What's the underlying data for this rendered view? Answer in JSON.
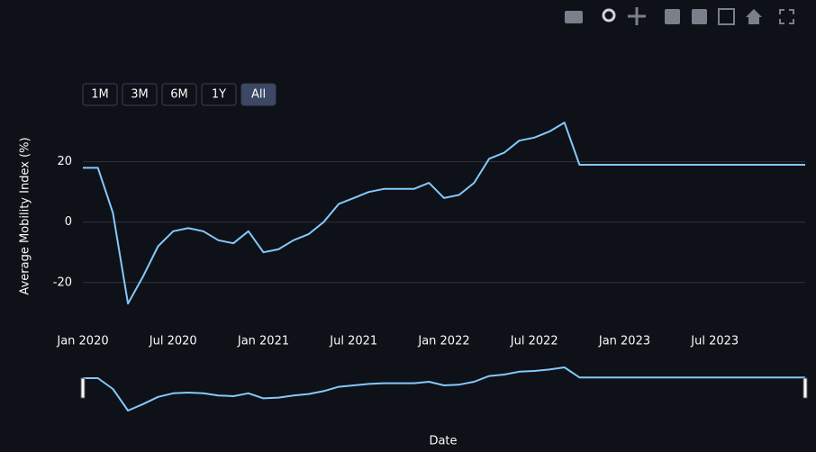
{
  "chart_data": {
    "type": "line",
    "y_title": "Average Mobility Index (%)",
    "x_title": "Date",
    "range_buttons": [
      "1M",
      "3M",
      "6M",
      "1Y",
      "All"
    ],
    "active_button": 4,
    "x": [
      "2020-01",
      "2020-02",
      "2020-03",
      "2020-04",
      "2020-05",
      "2020-06",
      "2020-07",
      "2020-08",
      "2020-09",
      "2020-10",
      "2020-11",
      "2020-12",
      "2021-01",
      "2021-02",
      "2021-03",
      "2021-04",
      "2021-05",
      "2021-06",
      "2021-07",
      "2021-08",
      "2021-09",
      "2021-10",
      "2021-11",
      "2021-12",
      "2022-01",
      "2022-02",
      "2022-03",
      "2022-04",
      "2022-05",
      "2022-06",
      "2022-07",
      "2022-08",
      "2022-09",
      "2022-10",
      "2022-11",
      "2022-12",
      "2023-01",
      "2023-02",
      "2023-03",
      "2023-04",
      "2023-05",
      "2023-06",
      "2023-07",
      "2023-08",
      "2023-09",
      "2023-10",
      "2023-11",
      "2023-12",
      "2024-01"
    ],
    "series": [
      {
        "name": "Average Mobility Index",
        "color": "#83c9ff",
        "values": [
          18,
          18,
          3,
          -27,
          -18,
          -8,
          -3,
          -2,
          -3,
          -6,
          -7,
          -3,
          -10,
          -9,
          -6,
          -4,
          0,
          6,
          8,
          10,
          11,
          11,
          11,
          13,
          8,
          9,
          13,
          21,
          23,
          27,
          28,
          30,
          33,
          19,
          19,
          19,
          19,
          19,
          19,
          19,
          19,
          19,
          19,
          19,
          19,
          19,
          19,
          19,
          19
        ]
      }
    ],
    "xlim": [
      "2020-01",
      "2024-01"
    ],
    "xticks": [
      {
        "value": "2020-01",
        "label": "Jan 2020"
      },
      {
        "value": "2020-07",
        "label": "Jul 2020"
      },
      {
        "value": "2021-01",
        "label": "Jan 2021"
      },
      {
        "value": "2021-07",
        "label": "Jul 2021"
      },
      {
        "value": "2022-01",
        "label": "Jan 2022"
      },
      {
        "value": "2022-07",
        "label": "Jul 2022"
      },
      {
        "value": "2023-01",
        "label": "Jan 2023"
      },
      {
        "value": "2023-07",
        "label": "Jul 2023"
      }
    ],
    "ylim": [
      -32,
      36
    ],
    "yticks": [
      -20,
      0,
      20
    ],
    "grid": true,
    "range_slider": true
  }
}
